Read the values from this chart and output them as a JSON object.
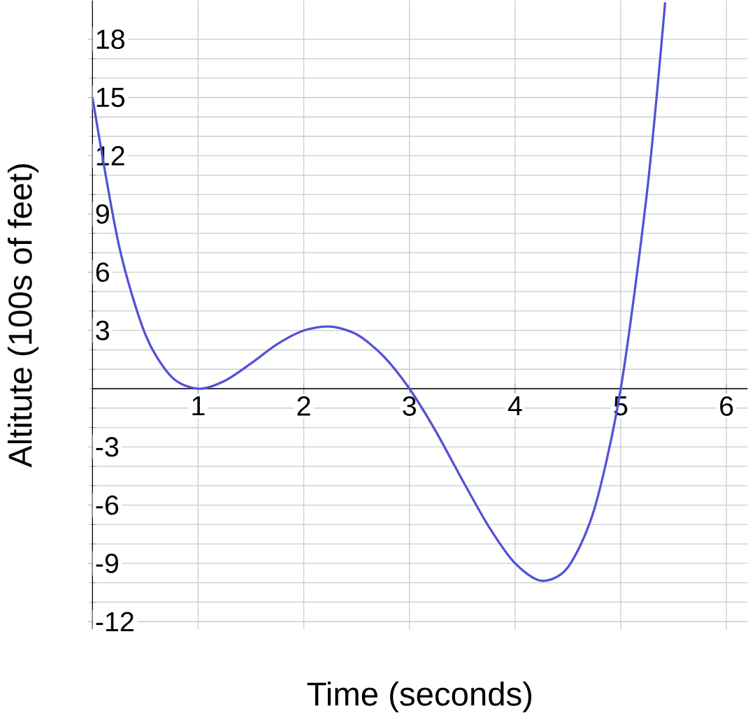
{
  "chart_data": {
    "type": "line",
    "xlabel": "Time (seconds)",
    "ylabel": "Altitute (100s of feet)",
    "x": [
      0,
      0.25,
      0.5,
      0.75,
      1,
      1.25,
      1.5,
      1.75,
      2,
      2.25,
      2.5,
      2.75,
      3,
      3.25,
      3.5,
      3.75,
      4,
      4.25,
      4.5,
      4.75,
      5,
      5.25,
      5.42
    ],
    "series": [
      {
        "color": "#5252d6",
        "values": [
          15,
          7.4,
          2.8,
          0.6,
          0,
          0.4,
          1.3,
          2.3,
          3,
          3.2,
          2.8,
          1.7,
          0,
          -2.2,
          -4.7,
          -7.1,
          -9,
          -9.9,
          -9.2,
          -6.2,
          0,
          10.2,
          19.9
        ]
      }
    ],
    "xlim": [
      0,
      6.2
    ],
    "ylim": [
      -12.4,
      20
    ],
    "xticks": [
      1,
      2,
      3,
      4,
      5,
      6
    ],
    "yticks": [
      -12,
      -9,
      -6,
      -3,
      3,
      6,
      9,
      12,
      15,
      18
    ],
    "grid": true,
    "marker": "none",
    "line_style": "solid"
  }
}
